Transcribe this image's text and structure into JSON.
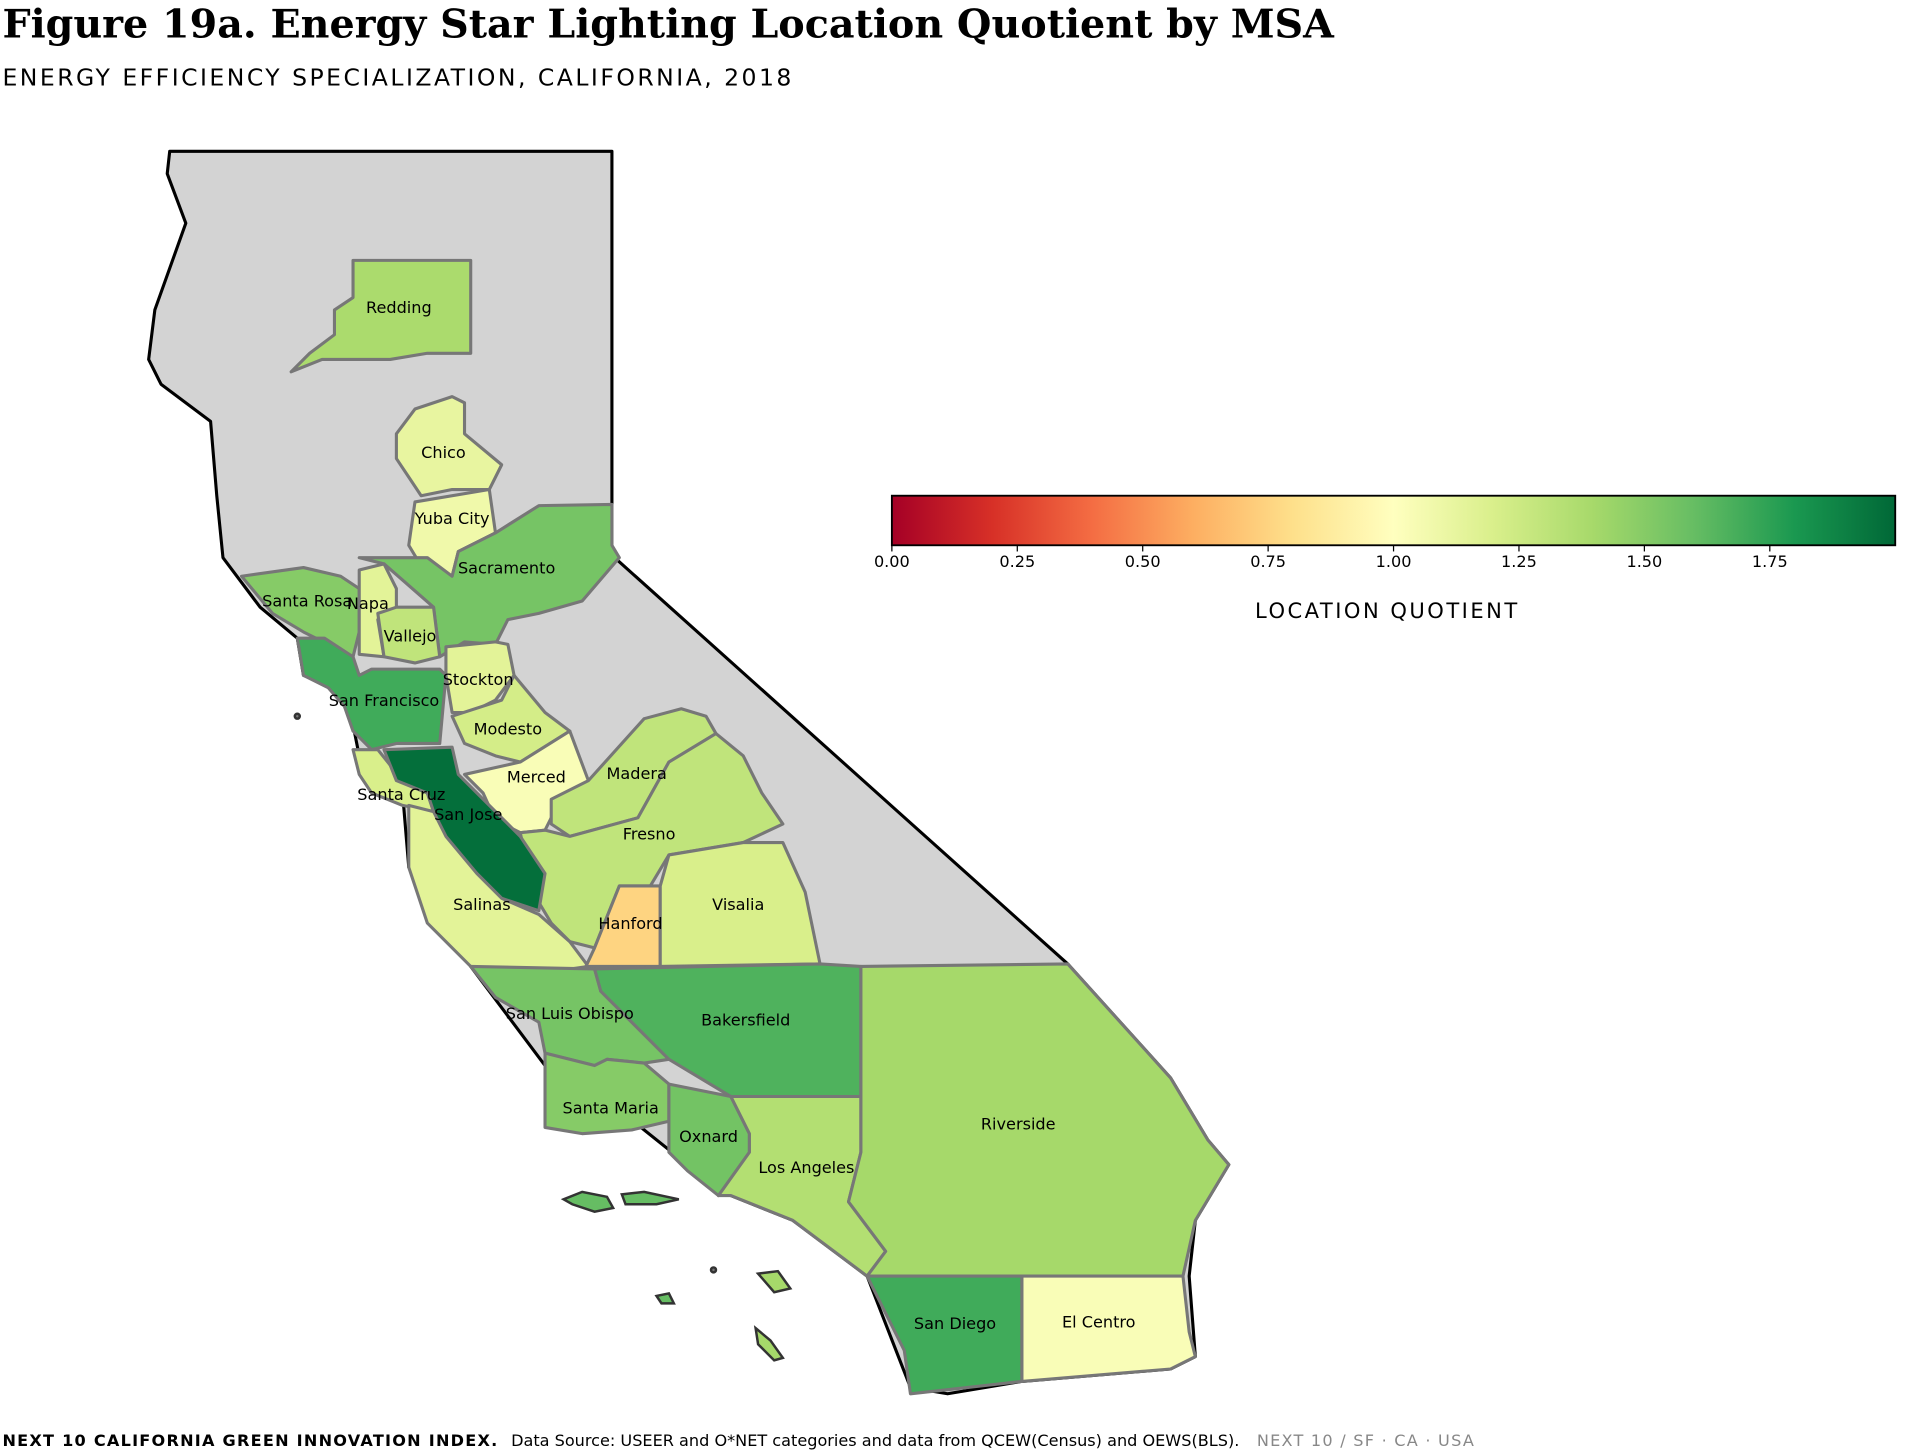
{
  "chart_data": {
    "type": "choropleth",
    "title": "Figure 19a. Energy Star Lighting Location Quotient by MSA",
    "subtitle": "ENERGY EFFICIENCY SPECIALIZATION, CALIFORNIA, 2018",
    "colormap": "RdYlGn",
    "colorbar": {
      "label": "LOCATION QUOTIENT",
      "clim": [
        0,
        2
      ],
      "ticks": [
        {
          "value": 0,
          "label": "0.00"
        },
        {
          "value": 0.25,
          "label": "0.25"
        },
        {
          "value": 0.5,
          "label": "0.50"
        },
        {
          "value": 0.75,
          "label": "0.75"
        },
        {
          "value": 1,
          "label": "1.00"
        },
        {
          "value": 1.25,
          "label": "1.25"
        },
        {
          "value": 1.5,
          "label": "1.50"
        },
        {
          "value": 1.75,
          "label": "1.75"
        }
      ]
    },
    "regions": [
      {
        "name": "Redding",
        "value": 1.38
      },
      {
        "name": "Chico",
        "value": 1.12
      },
      {
        "name": "Yuba City",
        "value": 1.08
      },
      {
        "name": "Sacramento",
        "value": 1.55
      },
      {
        "name": "Santa Rosa",
        "value": 1.5
      },
      {
        "name": "Napa",
        "value": 1.15
      },
      {
        "name": "Vallejo",
        "value": 1.3
      },
      {
        "name": "San Francisco",
        "value": 1.7
      },
      {
        "name": "Stockton",
        "value": 1.15
      },
      {
        "name": "Modesto",
        "value": 1.22
      },
      {
        "name": "Merced",
        "value": 1.03
      },
      {
        "name": "Madera",
        "value": 1.3
      },
      {
        "name": "Fresno",
        "value": 1.3
      },
      {
        "name": "Santa Cruz",
        "value": 1.2
      },
      {
        "name": "San Jose",
        "value": 1.97
      },
      {
        "name": "Salinas",
        "value": 1.15
      },
      {
        "name": "Hanford",
        "value": 0.75
      },
      {
        "name": "Visalia",
        "value": 1.2
      },
      {
        "name": "San Luis Obispo",
        "value": 1.55
      },
      {
        "name": "Bakersfield",
        "value": 1.66
      },
      {
        "name": "Santa Maria",
        "value": 1.5
      },
      {
        "name": "Oxnard",
        "value": 1.56
      },
      {
        "name": "Los Angeles",
        "value": 1.35
      },
      {
        "name": "Riverside",
        "value": 1.4
      },
      {
        "name": "San Diego",
        "value": 1.7
      },
      {
        "name": "El Centro",
        "value": 1.03
      }
    ]
  },
  "footer": {
    "organization": "NEXT 10 CALIFORNIA GREEN INNOVATION INDEX.",
    "source": "Data Source: USEER and O*NET categories and data from QCEW(Census) and OEWS(BLS).",
    "brand": "NEXT 10  /  SF · CA · USA"
  }
}
